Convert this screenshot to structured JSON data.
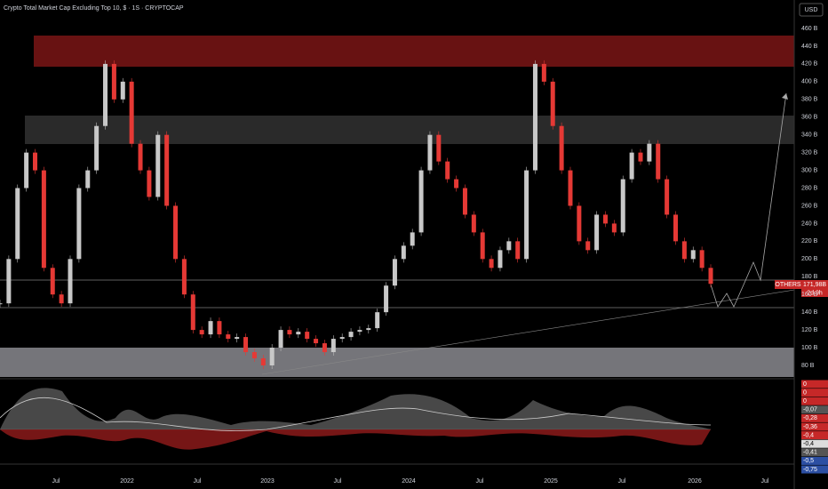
{
  "header": {
    "title": "Crypto Total Market Cap Excluding Top 10, $ · 1S · CRYPTOCAP",
    "currency": "USD"
  },
  "price_axis": {
    "labels": [
      "460 B",
      "440 B",
      "420 B",
      "400 B",
      "380 B",
      "360 B",
      "340 B",
      "320 B",
      "300 B",
      "280 B",
      "260 B",
      "240 B",
      "220 B",
      "200 B",
      "180 B",
      "160 B",
      "140 B",
      "120 B",
      "100 B",
      "80 B"
    ]
  },
  "time_axis": {
    "labels": [
      "Jul",
      "2022",
      "Jul",
      "2023",
      "Jul",
      "2024",
      "Jul",
      "2025",
      "Jul",
      "2026",
      "Jul"
    ]
  },
  "price_tag": {
    "symbol": "OTHERS",
    "price": "171,98B",
    "countdown": "2d 9h"
  },
  "candles": {
    "closes": [
      150,
      200,
      280,
      320,
      300,
      190,
      160,
      150,
      200,
      280,
      300,
      350,
      420,
      380,
      400,
      330,
      300,
      270,
      340,
      260,
      200,
      160,
      120,
      115,
      130,
      115,
      110,
      112,
      95,
      88,
      80,
      100,
      120,
      115,
      118,
      110,
      105,
      95,
      110,
      112,
      118,
      120,
      122,
      140,
      170,
      200,
      215,
      230,
      300,
      340,
      310,
      290,
      280,
      250,
      230,
      200,
      190,
      210,
      220,
      200,
      300,
      420,
      400,
      350,
      300,
      260,
      220,
      210,
      250,
      240,
      230,
      290,
      320,
      310,
      330,
      290,
      250,
      220,
      200,
      210,
      190,
      172
    ]
  },
  "indicator": {
    "labels": [
      "0",
      "0",
      "0",
      "-0,07",
      "-0,28",
      "-0,36",
      "-0,4",
      "-0,4",
      "-0,41",
      "-0,5",
      "-0,75"
    ]
  }
}
